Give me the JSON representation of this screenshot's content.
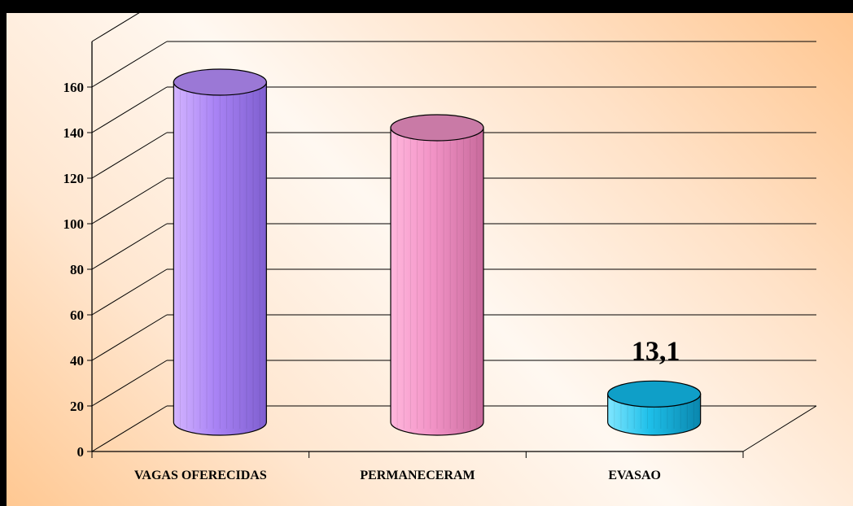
{
  "chart_data": {
    "type": "bar",
    "style": "3d-cylinder",
    "categories": [
      "VAGAS OFERECIDAS",
      "PERMANECERAM",
      "EVASAO"
    ],
    "values": [
      150,
      130,
      13.1
    ],
    "series_colors": [
      "#a67ff0",
      "#f08fc4",
      "#1ab8e4"
    ],
    "data_labels": [
      "",
      "",
      "13,1"
    ],
    "yticks": [
      "0",
      "20",
      "40",
      "60",
      "80",
      "100",
      "120",
      "140",
      "160"
    ],
    "ylim": [
      0,
      180
    ],
    "grid": true,
    "legend": false
  }
}
